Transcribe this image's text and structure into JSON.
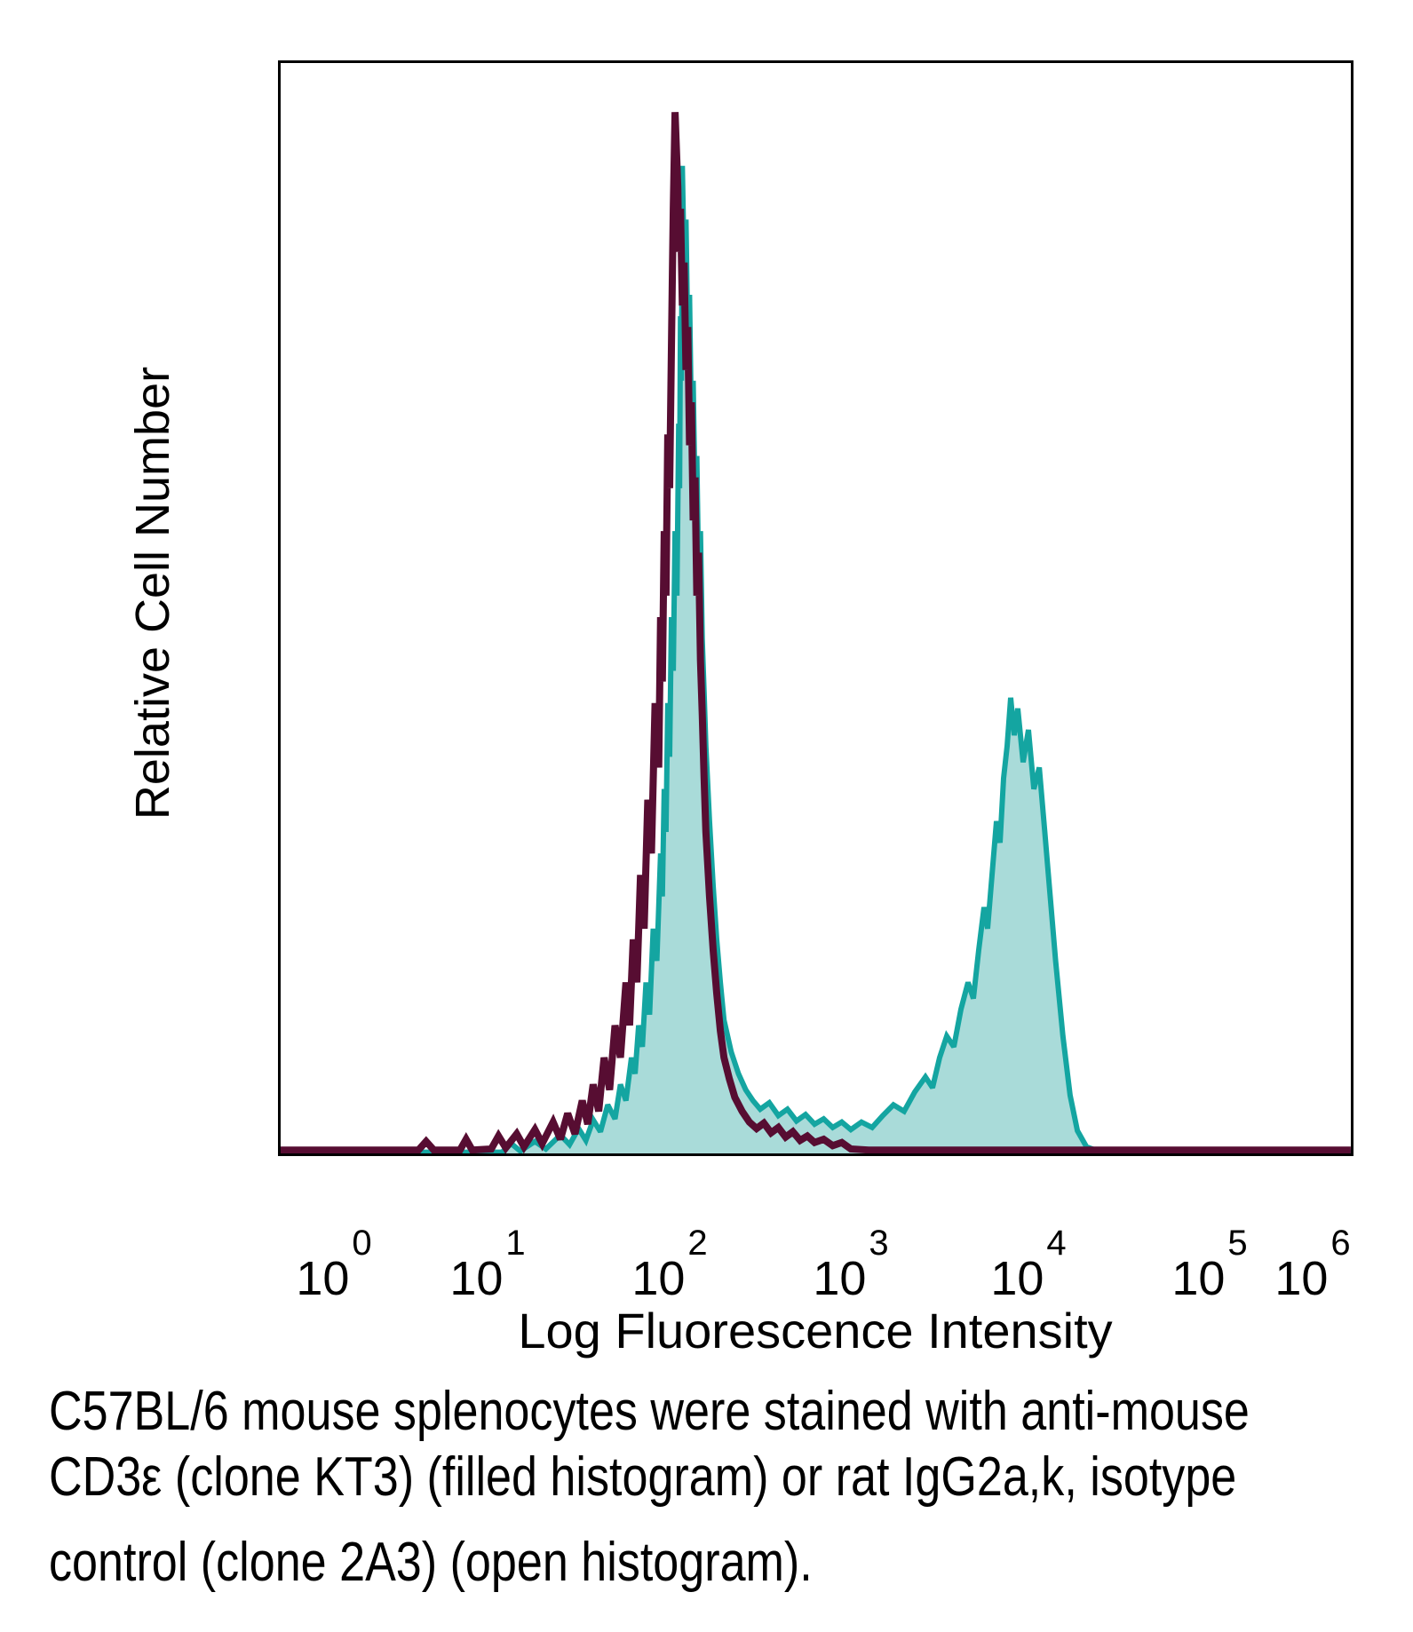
{
  "figure": {
    "y_axis_label": "Relative Cell Number",
    "x_axis_label": "Log Fluorescence Intensity"
  },
  "caption": {
    "lines": [
      "C57BL/6 mouse splenocytes were stained with anti-mouse",
      "CD3ε (clone KT3) (filled histogram) or rat IgG2a,k, isotype",
      "control (clone 2A3) (open histogram)."
    ]
  },
  "colors": {
    "background": "#FFFFFF",
    "axis_border": "#000000",
    "filled_series_stroke": "#14A5A1",
    "filled_series_fill": "#A9DBD9",
    "open_series_stroke": "#570D32"
  },
  "chart_data": {
    "type": "area",
    "title": "",
    "xlabel": "Log Fluorescence Intensity",
    "ylabel": "Relative Cell Number",
    "x_scale": "log10",
    "x_range_log10": [
      -0.35,
      6.37
    ],
    "ylim": [
      0,
      100
    ],
    "y_axis_ticks": "none (relative scale)",
    "grid": false,
    "legend": "none (series identified in caption)",
    "x_ticks": [
      {
        "base": 10,
        "exponent": 0
      },
      {
        "base": 10,
        "exponent": 1
      },
      {
        "base": 10,
        "exponent": 2
      },
      {
        "base": 10,
        "exponent": 3
      },
      {
        "base": 10,
        "exponent": 4
      },
      {
        "base": 10,
        "exponent": 5
      },
      {
        "base": 10,
        "exponent": 6
      }
    ],
    "series": [
      {
        "name": "anti-mouse CD3ε (clone KT3)",
        "style": "filled histogram",
        "stroke_color": "#14A5A1",
        "fill_color": "#A9DBD9",
        "peaks": [
          {
            "x_log10": 2.07,
            "y_rel": 92
          },
          {
            "x_log10": 3.9,
            "y_rel": 42.5
          }
        ],
        "points_x_log10_y_rel": [
          [
            -0.35,
            0.2
          ],
          [
            1.08,
            0.2
          ],
          [
            1.13,
            1.0
          ],
          [
            1.18,
            0.3
          ],
          [
            1.26,
            1.2
          ],
          [
            1.32,
            0.5
          ],
          [
            1.4,
            1.8
          ],
          [
            1.45,
            0.9
          ],
          [
            1.5,
            2.4
          ],
          [
            1.54,
            1.3
          ],
          [
            1.58,
            3.2
          ],
          [
            1.62,
            2.1
          ],
          [
            1.66,
            4.6
          ],
          [
            1.7,
            3.3
          ],
          [
            1.73,
            6.5
          ],
          [
            1.76,
            5
          ],
          [
            1.79,
            9
          ],
          [
            1.81,
            7.5
          ],
          [
            1.83,
            12
          ],
          [
            1.85,
            10
          ],
          [
            1.87,
            16
          ],
          [
            1.89,
            13
          ],
          [
            1.91,
            21
          ],
          [
            1.93,
            18
          ],
          [
            1.95,
            28
          ],
          [
            1.96,
            24
          ],
          [
            1.97,
            34
          ],
          [
            1.98,
            30
          ],
          [
            1.99,
            42
          ],
          [
            2.0,
            37
          ],
          [
            2.01,
            50
          ],
          [
            2.02,
            45
          ],
          [
            2.03,
            58
          ],
          [
            2.04,
            52
          ],
          [
            2.05,
            68
          ],
          [
            2.055,
            62
          ],
          [
            2.06,
            78
          ],
          [
            2.065,
            72
          ],
          [
            2.07,
            92
          ],
          [
            2.08,
            83
          ],
          [
            2.09,
            87
          ],
          [
            2.1,
            76
          ],
          [
            2.11,
            80
          ],
          [
            2.12,
            68
          ],
          [
            2.13,
            72
          ],
          [
            2.14,
            61
          ],
          [
            2.15,
            65
          ],
          [
            2.16,
            54
          ],
          [
            2.17,
            58
          ],
          [
            2.18,
            48
          ],
          [
            2.19,
            43
          ],
          [
            2.2,
            38
          ],
          [
            2.22,
            31
          ],
          [
            2.24,
            25
          ],
          [
            2.26,
            20
          ],
          [
            2.28,
            16
          ],
          [
            2.3,
            12.5
          ],
          [
            2.34,
            9.5
          ],
          [
            2.38,
            7.5
          ],
          [
            2.42,
            6
          ],
          [
            2.46,
            5
          ],
          [
            2.5,
            4.2
          ],
          [
            2.55,
            4.8
          ],
          [
            2.6,
            3.6
          ],
          [
            2.65,
            4.2
          ],
          [
            2.7,
            3.1
          ],
          [
            2.75,
            3.7
          ],
          [
            2.8,
            2.8
          ],
          [
            2.85,
            3.3
          ],
          [
            2.9,
            2.5
          ],
          [
            2.95,
            3.0
          ],
          [
            3.0,
            2.3
          ],
          [
            3.06,
            3.0
          ],
          [
            3.12,
            2.5
          ],
          [
            3.18,
            3.6
          ],
          [
            3.24,
            4.6
          ],
          [
            3.3,
            4.0
          ],
          [
            3.36,
            5.8
          ],
          [
            3.42,
            7.2
          ],
          [
            3.46,
            6.2
          ],
          [
            3.5,
            9
          ],
          [
            3.54,
            11
          ],
          [
            3.58,
            10
          ],
          [
            3.62,
            13.5
          ],
          [
            3.66,
            16
          ],
          [
            3.69,
            14.5
          ],
          [
            3.72,
            19
          ],
          [
            3.75,
            23
          ],
          [
            3.77,
            21
          ],
          [
            3.8,
            27
          ],
          [
            3.82,
            31
          ],
          [
            3.84,
            29
          ],
          [
            3.86,
            35
          ],
          [
            3.88,
            38
          ],
          [
            3.9,
            42.5
          ],
          [
            3.92,
            39
          ],
          [
            3.94,
            41.5
          ],
          [
            3.97,
            36.5
          ],
          [
            4.0,
            39.5
          ],
          [
            4.03,
            34
          ],
          [
            4.06,
            36
          ],
          [
            4.09,
            30
          ],
          [
            4.12,
            24
          ],
          [
            4.15,
            18
          ],
          [
            4.19,
            11
          ],
          [
            4.23,
            5.5
          ],
          [
            4.27,
            2.2
          ],
          [
            4.32,
            0.7
          ],
          [
            4.4,
            0.2
          ],
          [
            6.37,
            0.2
          ]
        ]
      },
      {
        "name": "rat IgG2a,k isotype control (clone 2A3)",
        "style": "open histogram",
        "stroke_color": "#570D32",
        "fill_color": "none",
        "peaks": [
          {
            "x_log10": 2.03,
            "y_rel": 97
          }
        ],
        "points_x_log10_y_rel": [
          [
            -0.35,
            0.4
          ],
          [
            0.55,
            0.4
          ],
          [
            0.6,
            1.2
          ],
          [
            0.65,
            0.4
          ],
          [
            0.82,
            0.4
          ],
          [
            0.86,
            1.4
          ],
          [
            0.9,
            0.4
          ],
          [
            1.02,
            0.5
          ],
          [
            1.06,
            1.7
          ],
          [
            1.1,
            0.6
          ],
          [
            1.16,
            1.9
          ],
          [
            1.2,
            0.7
          ],
          [
            1.26,
            2.3
          ],
          [
            1.3,
            1.0
          ],
          [
            1.36,
            3.0
          ],
          [
            1.4,
            1.4
          ],
          [
            1.44,
            3.8
          ],
          [
            1.48,
            1.9
          ],
          [
            1.52,
            5
          ],
          [
            1.55,
            2.8
          ],
          [
            1.58,
            6.5
          ],
          [
            1.61,
            4
          ],
          [
            1.64,
            9
          ],
          [
            1.67,
            6
          ],
          [
            1.7,
            12
          ],
          [
            1.73,
            9
          ],
          [
            1.76,
            16
          ],
          [
            1.78,
            12
          ],
          [
            1.8,
            20
          ],
          [
            1.82,
            16
          ],
          [
            1.84,
            26
          ],
          [
            1.86,
            21
          ],
          [
            1.88,
            33
          ],
          [
            1.9,
            28
          ],
          [
            1.92,
            42
          ],
          [
            1.94,
            36
          ],
          [
            1.95,
            50
          ],
          [
            1.96,
            44
          ],
          [
            1.97,
            58
          ],
          [
            1.98,
            52
          ],
          [
            1.99,
            67
          ],
          [
            2.0,
            62
          ],
          [
            2.01,
            75
          ],
          [
            2.015,
            82
          ],
          [
            2.02,
            88
          ],
          [
            2.03,
            97
          ],
          [
            2.045,
            90
          ],
          [
            2.05,
            84
          ],
          [
            2.06,
            88
          ],
          [
            2.07,
            79
          ],
          [
            2.08,
            83
          ],
          [
            2.09,
            73
          ],
          [
            2.1,
            77
          ],
          [
            2.11,
            66
          ],
          [
            2.12,
            70
          ],
          [
            2.13,
            59
          ],
          [
            2.14,
            63
          ],
          [
            2.15,
            52
          ],
          [
            2.16,
            56
          ],
          [
            2.17,
            46
          ],
          [
            2.18,
            41
          ],
          [
            2.19,
            35
          ],
          [
            2.2,
            30
          ],
          [
            2.22,
            24
          ],
          [
            2.24,
            19
          ],
          [
            2.26,
            15
          ],
          [
            2.28,
            11.5
          ],
          [
            2.3,
            9
          ],
          [
            2.33,
            7
          ],
          [
            2.36,
            5.3
          ],
          [
            2.4,
            4
          ],
          [
            2.44,
            3
          ],
          [
            2.48,
            2.4
          ],
          [
            2.52,
            2.9
          ],
          [
            2.56,
            2
          ],
          [
            2.6,
            2.5
          ],
          [
            2.64,
            1.6
          ],
          [
            2.68,
            2.1
          ],
          [
            2.72,
            1.3
          ],
          [
            2.76,
            1.7
          ],
          [
            2.8,
            1.1
          ],
          [
            2.85,
            1.4
          ],
          [
            2.9,
            0.8
          ],
          [
            2.95,
            1.1
          ],
          [
            3.0,
            0.5
          ],
          [
            3.1,
            0.4
          ],
          [
            6.37,
            0.4
          ]
        ]
      }
    ]
  }
}
